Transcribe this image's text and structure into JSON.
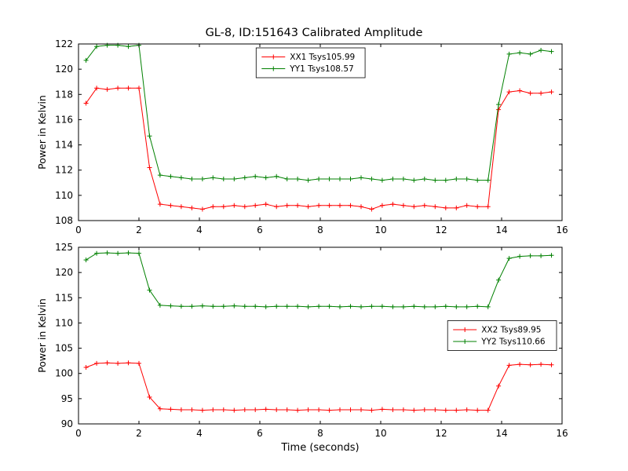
{
  "title": "GL-8, ID:151643 Calibrated Amplitude",
  "colors": {
    "red_series": "#ff0000",
    "green_series": "#008000",
    "axes": "#000000",
    "background": "#ffffff"
  },
  "chart_data": [
    {
      "type": "line",
      "name": "top-subplot",
      "marker": "plus",
      "title": "",
      "xlabel": "",
      "ylabel": "Power in Kelvin",
      "xlim": [
        0,
        16
      ],
      "ylim": [
        108,
        122
      ],
      "xticks": [
        0,
        2,
        4,
        6,
        8,
        10,
        12,
        14,
        16
      ],
      "yticks": [
        108,
        110,
        112,
        114,
        116,
        118,
        120,
        122
      ],
      "grid": false,
      "legend_position": "upper center",
      "x": [
        0.25,
        0.6,
        0.95,
        1.3,
        1.65,
        2.0,
        2.35,
        2.7,
        3.05,
        3.4,
        3.75,
        4.1,
        4.45,
        4.8,
        5.15,
        5.5,
        5.85,
        6.2,
        6.55,
        6.9,
        7.25,
        7.6,
        7.95,
        8.3,
        8.65,
        9.0,
        9.35,
        9.7,
        10.05,
        10.4,
        10.75,
        11.1,
        11.45,
        11.8,
        12.15,
        12.5,
        12.85,
        13.2,
        13.55,
        13.9,
        14.25,
        14.6,
        14.95,
        15.3,
        15.65
      ],
      "series": [
        {
          "name": "XX1 Tsys105.99",
          "color": "#ff0000",
          "values": [
            117.3,
            118.5,
            118.4,
            118.5,
            118.5,
            118.5,
            112.2,
            109.3,
            109.2,
            109.1,
            109.0,
            108.9,
            109.1,
            109.1,
            109.2,
            109.1,
            109.2,
            109.3,
            109.1,
            109.2,
            109.2,
            109.1,
            109.2,
            109.2,
            109.2,
            109.2,
            109.1,
            108.9,
            109.2,
            109.3,
            109.2,
            109.1,
            109.2,
            109.1,
            109.0,
            109.0,
            109.2,
            109.1,
            109.1,
            116.8,
            118.2,
            118.3,
            118.1,
            118.1,
            118.2
          ]
        },
        {
          "name": "YY1 Tsys108.57",
          "color": "#008000",
          "values": [
            120.7,
            121.8,
            121.9,
            121.9,
            121.8,
            121.9,
            114.7,
            111.6,
            111.5,
            111.4,
            111.3,
            111.3,
            111.4,
            111.3,
            111.3,
            111.4,
            111.5,
            111.4,
            111.5,
            111.3,
            111.3,
            111.2,
            111.3,
            111.3,
            111.3,
            111.3,
            111.4,
            111.3,
            111.2,
            111.3,
            111.3,
            111.2,
            111.3,
            111.2,
            111.2,
            111.3,
            111.3,
            111.2,
            111.2,
            117.2,
            121.2,
            121.3,
            121.2,
            121.5,
            121.4
          ]
        }
      ]
    },
    {
      "type": "line",
      "name": "bottom-subplot",
      "marker": "plus",
      "title": "",
      "xlabel": "Time (seconds)",
      "ylabel": "Power in Kelvin",
      "xlim": [
        0,
        16
      ],
      "ylim": [
        90,
        125
      ],
      "xticks": [
        0,
        2,
        4,
        6,
        8,
        10,
        12,
        14,
        16
      ],
      "yticks": [
        90,
        95,
        100,
        105,
        110,
        115,
        120,
        125
      ],
      "grid": false,
      "legend_position": "center right",
      "x": [
        0.25,
        0.6,
        0.95,
        1.3,
        1.65,
        2.0,
        2.35,
        2.7,
        3.05,
        3.4,
        3.75,
        4.1,
        4.45,
        4.8,
        5.15,
        5.5,
        5.85,
        6.2,
        6.55,
        6.9,
        7.25,
        7.6,
        7.95,
        8.3,
        8.65,
        9.0,
        9.35,
        9.7,
        10.05,
        10.4,
        10.75,
        11.1,
        11.45,
        11.8,
        12.15,
        12.5,
        12.85,
        13.2,
        13.55,
        13.9,
        14.25,
        14.6,
        14.95,
        15.3,
        15.65
      ],
      "series": [
        {
          "name": "XX2 Tsys89.95",
          "color": "#ff0000",
          "values": [
            101.2,
            102.0,
            102.1,
            102.0,
            102.1,
            102.0,
            95.3,
            93.0,
            92.9,
            92.8,
            92.8,
            92.7,
            92.8,
            92.8,
            92.7,
            92.8,
            92.8,
            92.9,
            92.8,
            92.8,
            92.7,
            92.8,
            92.8,
            92.7,
            92.8,
            92.8,
            92.8,
            92.7,
            92.9,
            92.8,
            92.8,
            92.7,
            92.8,
            92.8,
            92.7,
            92.7,
            92.8,
            92.7,
            92.7,
            97.5,
            101.6,
            101.8,
            101.7,
            101.8,
            101.7
          ]
        },
        {
          "name": "YY2 Tsys110.66",
          "color": "#008000",
          "values": [
            122.5,
            123.8,
            123.9,
            123.8,
            123.9,
            123.8,
            116.5,
            113.5,
            113.4,
            113.3,
            113.3,
            113.4,
            113.3,
            113.3,
            113.4,
            113.3,
            113.3,
            113.2,
            113.3,
            113.3,
            113.3,
            113.2,
            113.3,
            113.3,
            113.2,
            113.3,
            113.2,
            113.3,
            113.3,
            113.2,
            113.2,
            113.3,
            113.2,
            113.2,
            113.3,
            113.2,
            113.2,
            113.3,
            113.2,
            118.5,
            122.8,
            123.2,
            123.3,
            123.3,
            123.4
          ]
        }
      ]
    }
  ]
}
